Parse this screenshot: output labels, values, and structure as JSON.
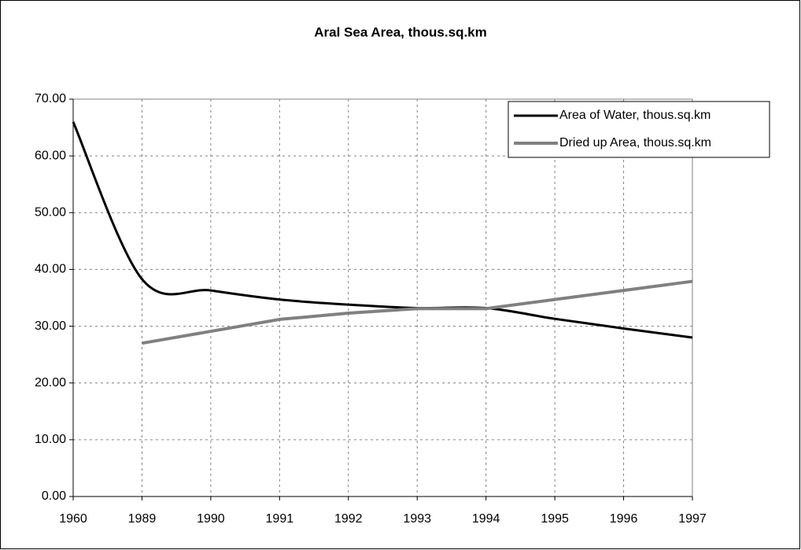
{
  "chart_data": {
    "type": "line",
    "title": "Aral Sea Area, thous.sq.km",
    "categories": [
      "1960",
      "1989",
      "1990",
      "1991",
      "1992",
      "1993",
      "1994",
      "1995",
      "1996",
      "1997"
    ],
    "series": [
      {
        "name": "Area of Water, thous.sq.km",
        "color": "#000000",
        "smooth": true,
        "values": [
          66.0,
          38.3,
          36.3,
          34.7,
          33.8,
          33.2,
          33.2,
          31.3,
          29.6,
          28.0
        ]
      },
      {
        "name": "Dried up Area, thous.sq.km",
        "color": "#808080",
        "smooth": false,
        "values": [
          null,
          27.0,
          29.1,
          31.2,
          32.3,
          33.1,
          33.1,
          34.7,
          36.3,
          37.9
        ]
      }
    ],
    "ylim": [
      0,
      70
    ],
    "yticks": [
      {
        "value": 0,
        "label": "0.00"
      },
      {
        "value": 10,
        "label": "10.00"
      },
      {
        "value": 20,
        "label": "20.00"
      },
      {
        "value": 30,
        "label": "30.00"
      },
      {
        "value": 40,
        "label": "40.00"
      },
      {
        "value": 50,
        "label": "50.00"
      },
      {
        "value": 60,
        "label": "60.00"
      },
      {
        "value": 70,
        "label": "70.00"
      }
    ],
    "grid": true,
    "legend": "top-right"
  }
}
